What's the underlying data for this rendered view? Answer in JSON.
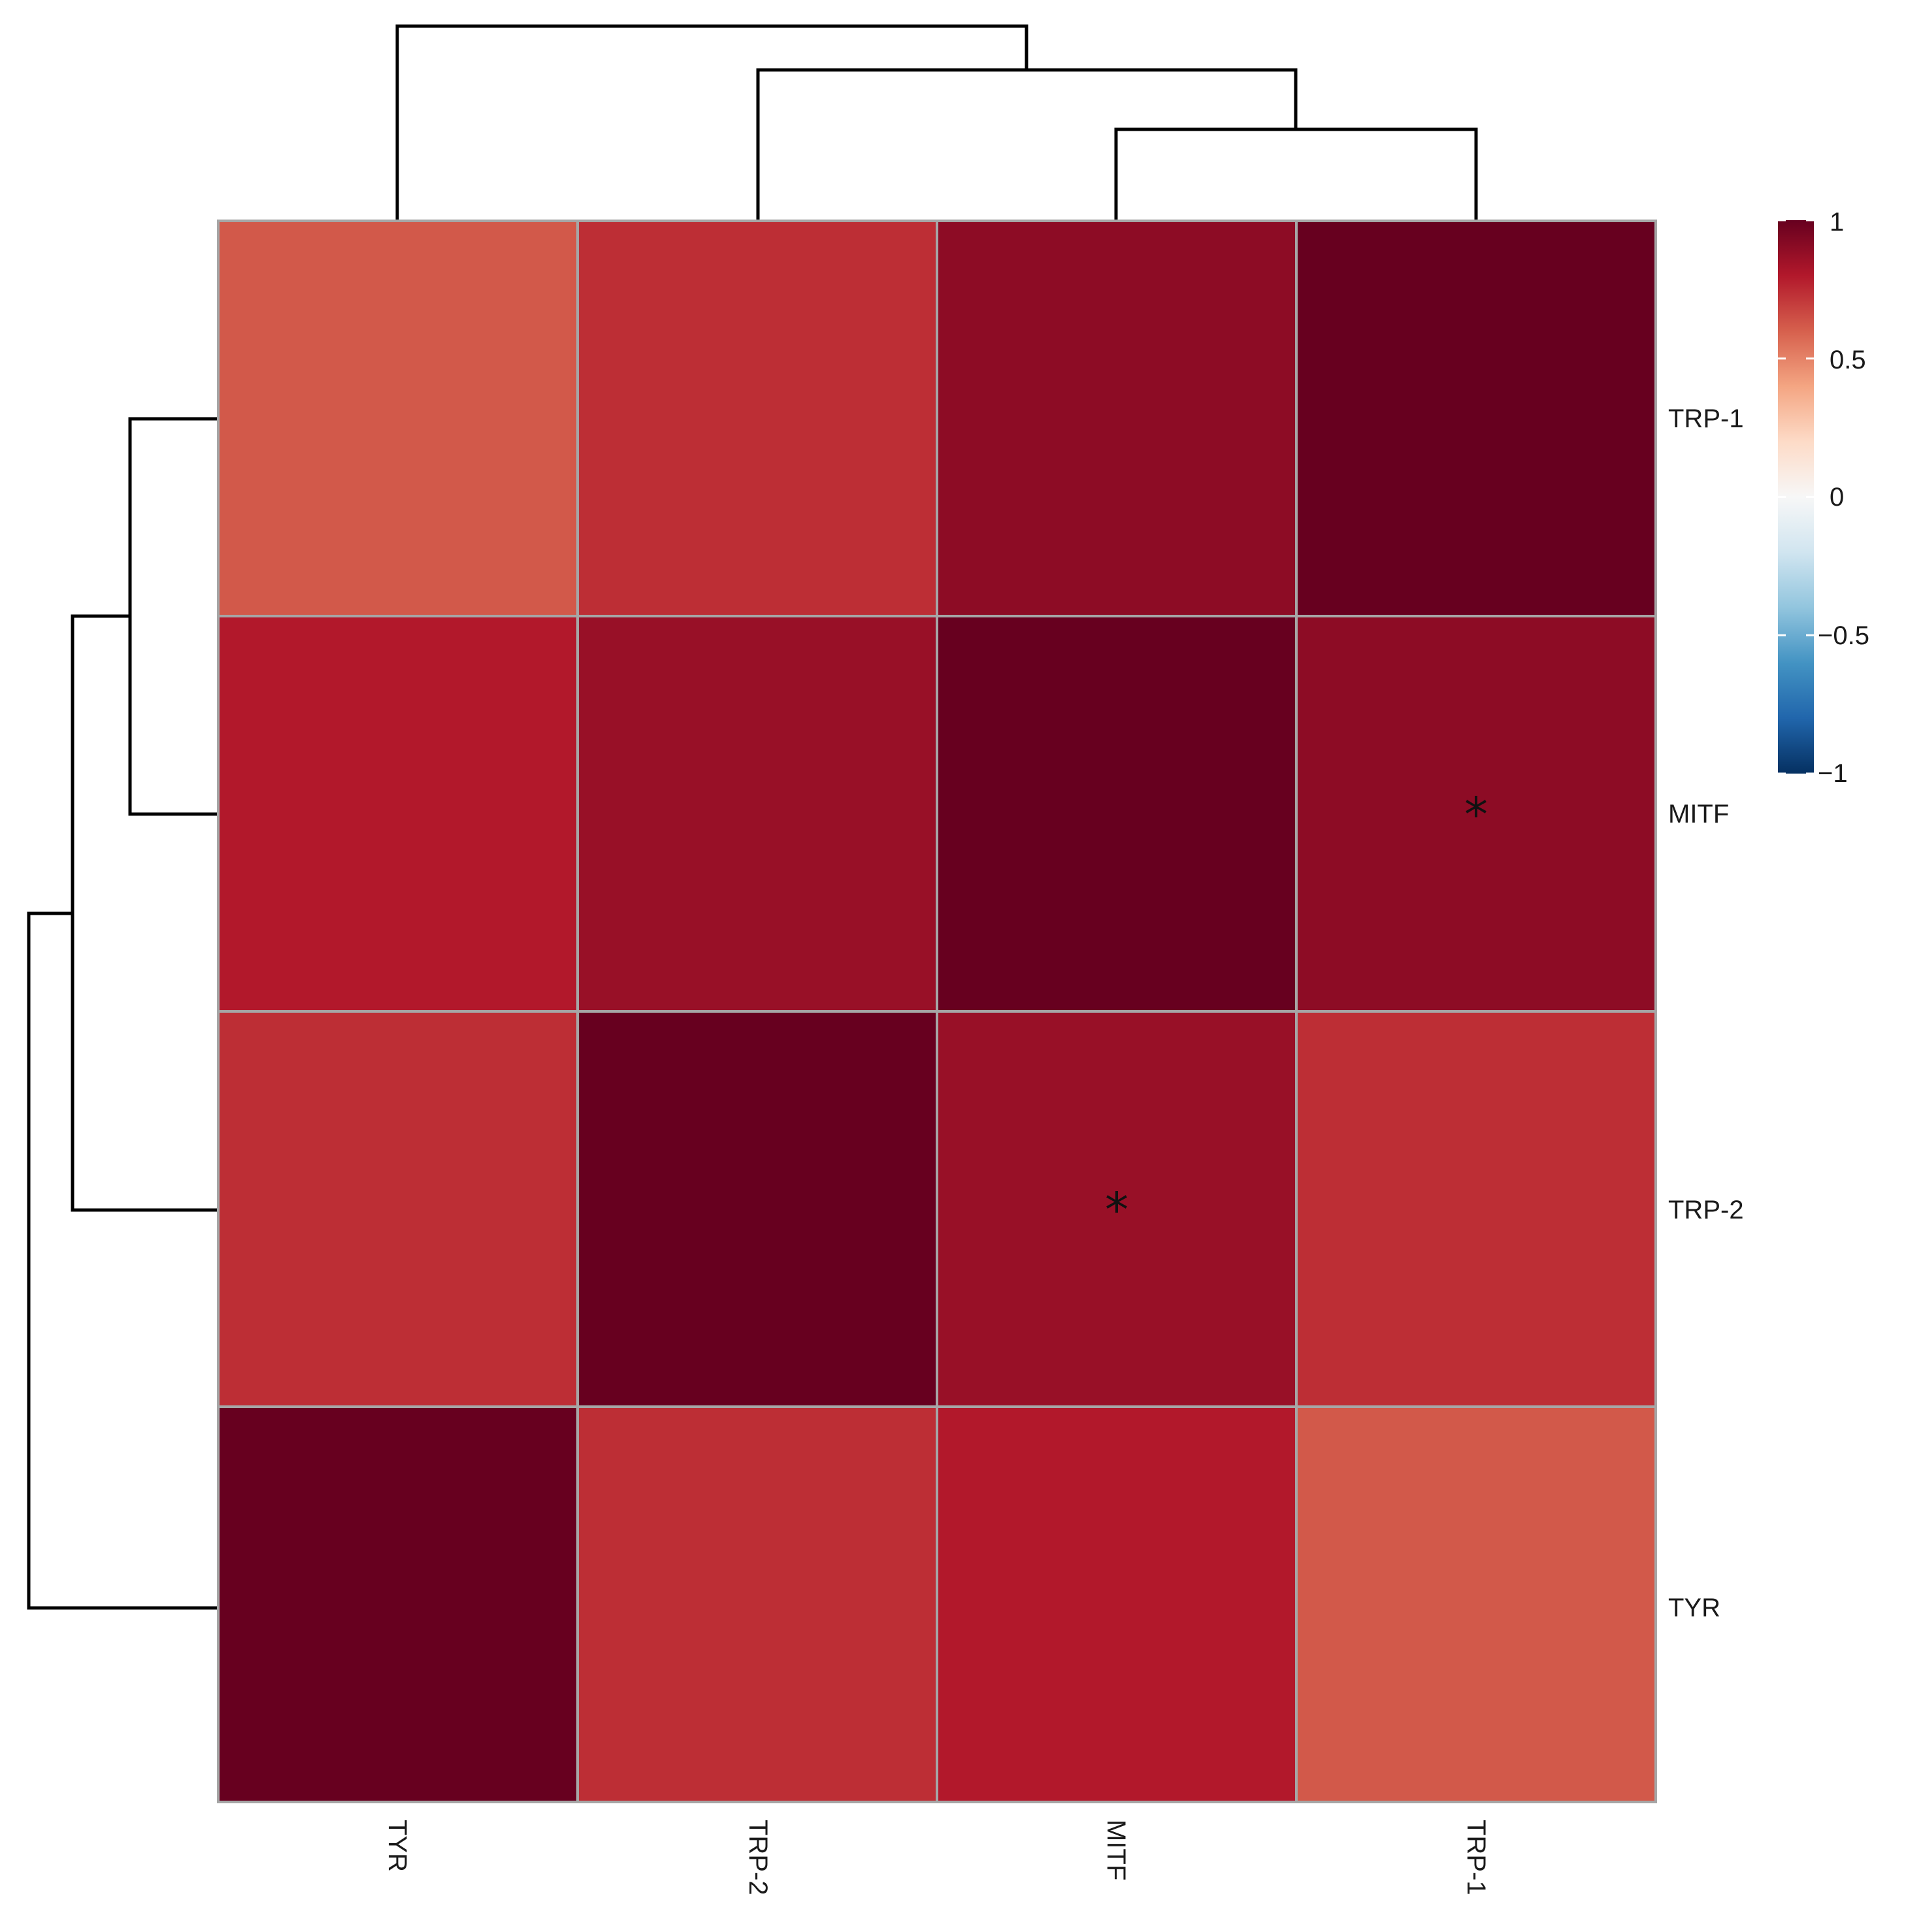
{
  "chart_data": {
    "type": "heatmap",
    "title": "",
    "rows": [
      "TRP-1",
      "MITF",
      "TRP-2",
      "TYR"
    ],
    "columns": [
      "TYR",
      "TRP-2",
      "MITF",
      "TRP-1"
    ],
    "values": [
      [
        0.62,
        0.74,
        0.9,
        1.0
      ],
      [
        0.8,
        0.87,
        1.0,
        0.9
      ],
      [
        0.74,
        1.0,
        0.87,
        0.74
      ],
      [
        1.0,
        0.74,
        0.8,
        0.62
      ]
    ],
    "significance": [
      [
        "",
        "",
        "",
        ""
      ],
      [
        "",
        "",
        "",
        "*"
      ],
      [
        "",
        "",
        "*",
        ""
      ],
      [
        "",
        "",
        "",
        ""
      ]
    ],
    "colorbar": {
      "min": -1,
      "max": 1,
      "ticks": [
        1,
        0.5,
        0,
        -0.5,
        -1
      ],
      "tick_labels": [
        "1",
        "0.5",
        "0",
        "−0.5",
        "−1"
      ],
      "colors": [
        "#053061",
        "#2166ac",
        "#4393c3",
        "#92c5de",
        "#d1e5f0",
        "#f7f7f7",
        "#fddbc7",
        "#f4a582",
        "#d6604d",
        "#b2182b",
        "#67001f"
      ]
    },
    "row_dendrogram": "((TRP-1, MITF), TRP-2), TYR",
    "column_dendrogram": "TYR, (TRP-2, (MITF, TRP-1))",
    "grid_color": "#a6a6a6",
    "legend_position": "right"
  }
}
